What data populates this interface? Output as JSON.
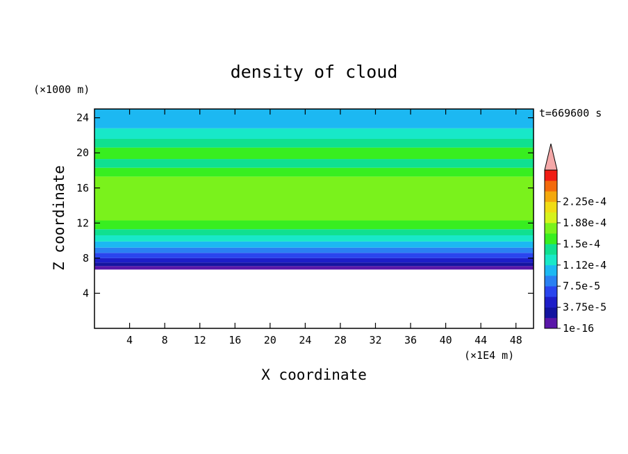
{
  "chart_data": {
    "type": "heatmap",
    "title": "density of cloud",
    "xlabel": "X coordinate",
    "ylabel": "Z coordinate",
    "x_unit": "(×1E4 m)",
    "y_unit": "(×1000 m)",
    "time_label": "t=669600 s",
    "xlim": [
      0,
      50
    ],
    "ylim": [
      0,
      25
    ],
    "x_ticks": [
      4,
      8,
      12,
      16,
      20,
      24,
      28,
      32,
      36,
      40,
      44,
      48
    ],
    "y_ticks": [
      4,
      8,
      12,
      16,
      20,
      24
    ],
    "colorbar": {
      "levels": [
        1e-16,
        1.875e-05,
        3.75e-05,
        5.625e-05,
        7.5e-05,
        9.375e-05,
        0.0001125,
        0.00013125,
        0.00015,
        0.00016875,
        0.0001875,
        0.00020625,
        0.000225,
        0.00024375
      ],
      "tick_labels": [
        "1e-16",
        "3.75e-5",
        "7.5e-5",
        "1.12e-4",
        "1.5e-4",
        "1.88e-4",
        "2.25e-4"
      ],
      "colors": [
        "#5a17a8",
        "#1414a0",
        "#1e1ec8",
        "#2a45ee",
        "#2a80f2",
        "#1cb8f2",
        "#18e8c8",
        "#10e090",
        "#38ee20",
        "#7af21c",
        "#d6f21c",
        "#f0dc14",
        "#f4a80c",
        "#f46a0c",
        "#f01c14"
      ],
      "extend_color": "#f4a8a8"
    },
    "profile": [
      {
        "z": 6.7,
        "value": 1e-16
      },
      {
        "z": 7.1,
        "value": 1.875e-05
      },
      {
        "z": 7.5,
        "value": 3.75e-05
      },
      {
        "z": 8.0,
        "value": 5.625e-05
      },
      {
        "z": 8.6,
        "value": 7.5e-05
      },
      {
        "z": 9.2,
        "value": 9.375e-05
      },
      {
        "z": 9.9,
        "value": 0.0001125
      },
      {
        "z": 10.6,
        "value": 0.00013125
      },
      {
        "z": 11.3,
        "value": 0.00015
      },
      {
        "z": 12.3,
        "value": 0.00016875
      },
      {
        "z": 17.3,
        "value": 0.00015
      },
      {
        "z": 18.3,
        "value": 0.00013125
      },
      {
        "z": 19.3,
        "value": 0.00015
      },
      {
        "z": 20.6,
        "value": 0.00013125
      },
      {
        "z": 21.6,
        "value": 0.0001125
      },
      {
        "z": 22.8,
        "value": 9.375e-05
      },
      {
        "z": 24.8,
        "value": 9.375e-05
      }
    ],
    "clear_below_z": 6.7
  }
}
